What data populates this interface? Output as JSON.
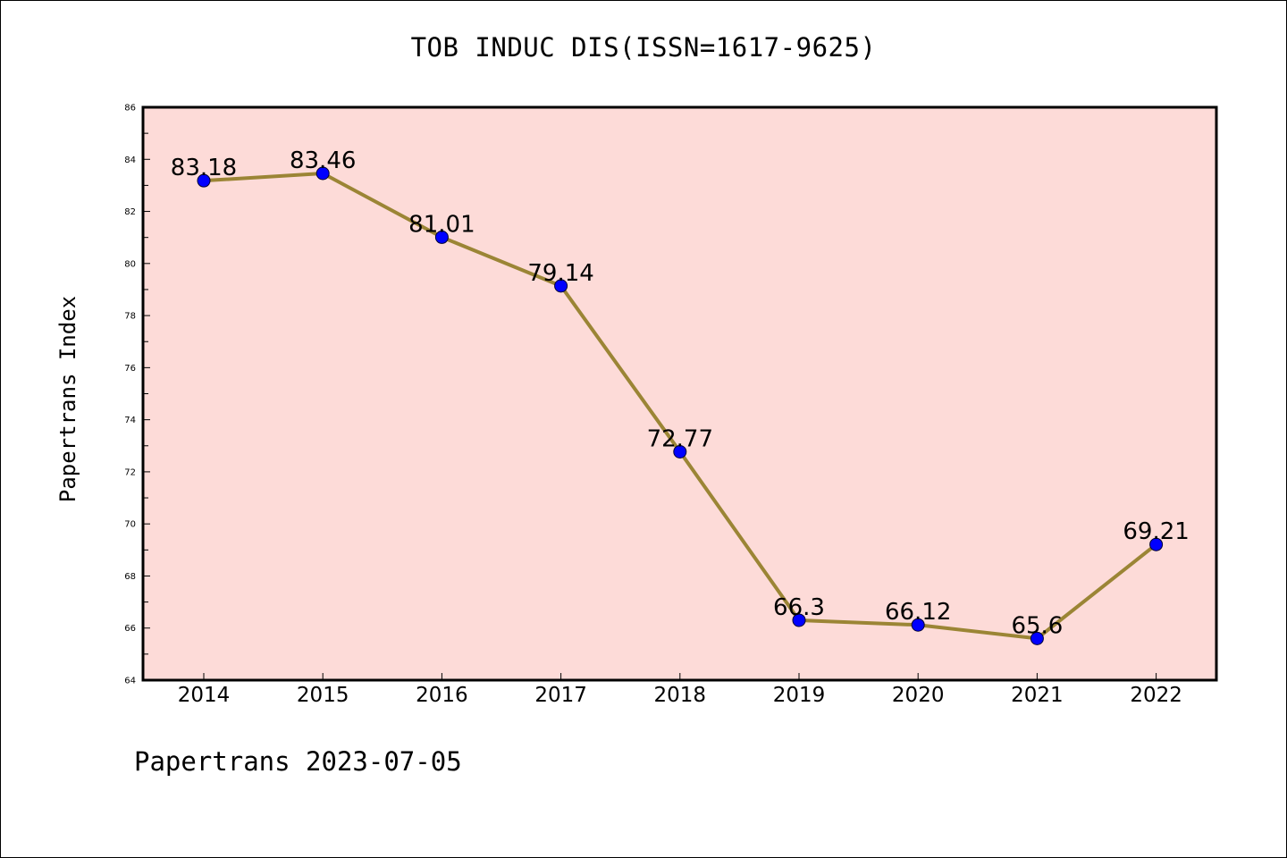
{
  "chart_data": {
    "type": "line",
    "title": "TOB INDUC DIS(ISSN=1617-9625)",
    "xlabel": "",
    "ylabel": "Papertrans Index",
    "x": [
      "2014",
      "2015",
      "2016",
      "2017",
      "2018",
      "2019",
      "2020",
      "2021",
      "2022"
    ],
    "values": [
      83.18,
      83.46,
      81.01,
      79.14,
      72.77,
      66.3,
      66.12,
      65.6,
      69.21
    ],
    "data_labels": [
      "83.18",
      "83.46",
      "81.01",
      "79.14",
      "72.77",
      "66.3",
      "66.12",
      "65.6",
      "69.21"
    ],
    "ylim": [
      64,
      86
    ],
    "y_ticks": [
      64,
      66,
      68,
      70,
      72,
      74,
      76,
      78,
      80,
      82,
      84,
      86
    ],
    "grid": false,
    "colors": {
      "plot_background": "#fddbd8",
      "line": "#9b8535",
      "marker": "#0000ff",
      "frame": "#000000"
    }
  },
  "footer": {
    "text": "Papertrans 2023-07-05"
  }
}
